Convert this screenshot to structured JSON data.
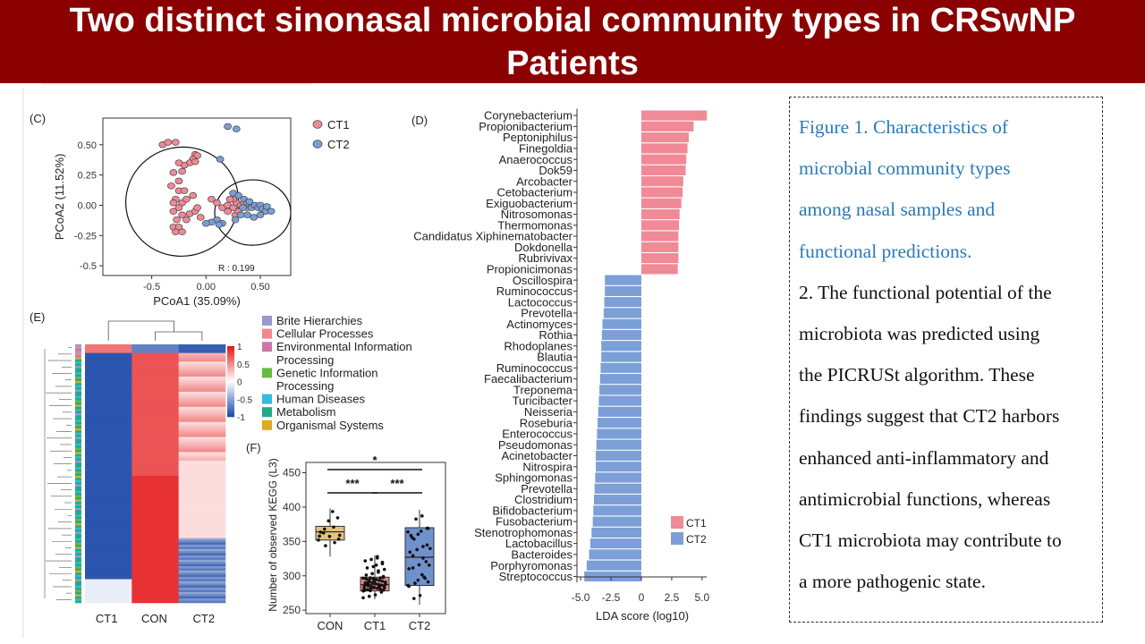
{
  "title": {
    "line1": "Two distinct sinonasal microbial community types in CRSwNP",
    "line2": "Patients"
  },
  "caption": {
    "lines": [
      {
        "text": "Figure 1. Characteristics of",
        "color": "#2a7ab9"
      },
      {
        "text": "microbial community types",
        "color": "#2a7ab9"
      },
      {
        "text": "among nasal samples and",
        "color": "#2a7ab9"
      },
      {
        "text": "functional predictions.",
        "color": "#2a7ab9"
      },
      {
        "text": "2. The functional potential of the",
        "color": "#111111"
      },
      {
        "text": "microbiota was predicted using",
        "color": "#111111"
      },
      {
        "text": "the PICRUSt algorithm. These",
        "color": "#111111"
      },
      {
        "text": "findings suggest that CT2 harbors",
        "color": "#111111"
      },
      {
        "text": "enhanced anti-inflammatory and",
        "color": "#111111"
      },
      {
        "text": "antimicrobial functions, whereas",
        "color": "#111111"
      },
      {
        "text": "CT1 microbiota may contribute to",
        "color": "#111111"
      },
      {
        "text": "a more pathogenic state.",
        "color": "#111111"
      }
    ]
  },
  "colors": {
    "ct1": "#f08a96",
    "ct2": "#7b9fd6",
    "con": "#e2c27e",
    "ct1_box": "#e8838f",
    "ct2_box": "#6f91cc"
  },
  "chart_data": [
    {
      "panel": "(C)",
      "type": "scatter",
      "xlabel": "PCoA1 (35.09%)",
      "ylabel": "PCoA2 (11.52%)",
      "xticks": [
        "-0.5",
        "0.00",
        "0.50"
      ],
      "yticks": [
        "0.50",
        "0.25",
        "0.00",
        "-0.25",
        "-0.5"
      ],
      "xlim": [
        -0.95,
        0.78
      ],
      "ylim": [
        -0.58,
        0.72
      ],
      "annotation": "R : 0.199",
      "legend": "right",
      "series": [
        {
          "name": "CT1",
          "points": [
            [
              -0.1,
              0.42
            ],
            [
              -0.08,
              0.41
            ],
            [
              -0.12,
              0.38
            ],
            [
              -0.15,
              0.35
            ],
            [
              -0.1,
              0.36
            ],
            [
              -0.2,
              0.33
            ],
            [
              -0.4,
              0.5
            ],
            [
              -0.35,
              0.52
            ],
            [
              -0.28,
              0.52
            ],
            [
              -0.25,
              0.35
            ],
            [
              -0.3,
              0.27
            ],
            [
              -0.22,
              0.28
            ],
            [
              -0.25,
              0.2
            ],
            [
              -0.32,
              0.16
            ],
            [
              -0.25,
              0.12
            ],
            [
              -0.28,
              0.05
            ],
            [
              -0.22,
              0.02
            ],
            [
              -0.3,
              0.02
            ],
            [
              -0.25,
              -0.02
            ],
            [
              -0.3,
              -0.05
            ],
            [
              -0.22,
              -0.08
            ],
            [
              -0.27,
              -0.12
            ],
            [
              -0.3,
              -0.18
            ],
            [
              -0.25,
              -0.18
            ],
            [
              -0.28,
              -0.22
            ],
            [
              -0.22,
              -0.22
            ],
            [
              -0.18,
              -0.12
            ],
            [
              -0.15,
              -0.07
            ],
            [
              -0.1,
              -0.05
            ],
            [
              -0.05,
              -0.1
            ],
            [
              -0.08,
              -0.02
            ],
            [
              -0.18,
              0.05
            ],
            [
              -0.12,
              0.08
            ],
            [
              -0.2,
              0.12
            ],
            [
              0.05,
              0.05
            ],
            [
              0.1,
              0.02
            ],
            [
              0.15,
              -0.02
            ],
            [
              0.2,
              0.0
            ],
            [
              0.25,
              -0.02
            ],
            [
              0.28,
              0.02
            ],
            [
              0.32,
              0.0
            ],
            [
              0.35,
              0.02
            ],
            [
              0.38,
              -0.02
            ],
            [
              0.2,
              -0.05
            ],
            [
              0.27,
              -0.08
            ],
            [
              0.3,
              -0.05
            ],
            [
              0.25,
              0.05
            ],
            [
              0.4,
              0.0
            ],
            [
              0.22,
              0.05
            ]
          ]
        },
        {
          "name": "CT2",
          "points": [
            [
              0.2,
              0.65
            ],
            [
              0.28,
              0.63
            ],
            [
              0.13,
              0.38
            ],
            [
              0.25,
              0.1
            ],
            [
              0.3,
              0.08
            ],
            [
              0.35,
              0.05
            ],
            [
              0.38,
              0.02
            ],
            [
              0.42,
              -0.02
            ],
            [
              0.45,
              0.0
            ],
            [
              0.48,
              -0.02
            ],
            [
              0.5,
              0.0
            ],
            [
              0.52,
              -0.03
            ],
            [
              0.55,
              -0.05
            ],
            [
              0.5,
              -0.08
            ],
            [
              0.44,
              -0.1
            ],
            [
              0.38,
              -0.08
            ],
            [
              0.32,
              -0.08
            ],
            [
              0.27,
              -0.12
            ],
            [
              0.15,
              -0.15
            ],
            [
              0.1,
              -0.12
            ],
            [
              0.05,
              -0.14
            ],
            [
              0.0,
              -0.15
            ],
            [
              0.12,
              -0.16
            ],
            [
              0.34,
              -0.02
            ],
            [
              0.6,
              -0.05
            ],
            [
              0.56,
              -0.01
            ],
            [
              0.4,
              0.03
            ]
          ]
        }
      ],
      "ellipses": [
        {
          "name": "CT1",
          "cx": -0.22,
          "cy": 0.03,
          "rx": 0.52,
          "ry": 0.45
        },
        {
          "name": "CT2",
          "cx": 0.43,
          "cy": -0.06,
          "rx": 0.35,
          "ry": 0.27
        }
      ]
    },
    {
      "panel": "(D)",
      "type": "bar",
      "orientation": "horizontal",
      "xlabel": "LDA score (log10)",
      "xticks": [
        "-5.0",
        "-2.5",
        "0",
        "2.5",
        "5.0"
      ],
      "xlim": [
        -5.3,
        5.6
      ],
      "legend": "bottom-right",
      "series": [
        {
          "name": "CT1",
          "categories": [
            "Corynebacterium",
            "Propionibacterium",
            "Peptoniphilus",
            "Finegoldia",
            "Anaerococcus",
            "Dok59",
            "Arcobacter",
            "Cetobacterium",
            "Exiguobacterium",
            "Nitrosomonas",
            "Thermomonas",
            "Candidatus Xiphinematobacter",
            "Dokdonella",
            "Rubrivivax",
            "Propionicimonas"
          ],
          "values": [
            5.4,
            4.3,
            3.9,
            3.8,
            3.7,
            3.65,
            3.45,
            3.4,
            3.3,
            3.15,
            3.1,
            3.05,
            3.05,
            3.05,
            3.0
          ]
        },
        {
          "name": "CT2",
          "categories": [
            "Oscillospira",
            "Ruminococcus",
            "Lactococcus",
            "Prevotella",
            "Actinomyces",
            "Rothia",
            "Rhodoplanes",
            "Blautia",
            "Ruminococcus",
            "Faecalibacterium",
            "Treponema",
            "Turicibacter",
            "Neisseria",
            "Roseburia",
            "Enterococcus",
            "Pseudomonas",
            "Acinetobacter",
            "Nitrospira",
            "Sphingomonas",
            "Prevotella",
            "Clostridium",
            "Bifidobacterium",
            "Fusobacterium",
            "Stenotrophomonas",
            "Lactobacillus",
            "Bacteroides",
            "Porphyromonas",
            "Streptococcus"
          ],
          "values": [
            -3.0,
            -3.0,
            -3.05,
            -3.1,
            -3.2,
            -3.25,
            -3.3,
            -3.3,
            -3.35,
            -3.4,
            -3.45,
            -3.5,
            -3.55,
            -3.6,
            -3.65,
            -3.7,
            -3.75,
            -3.75,
            -3.8,
            -3.85,
            -3.9,
            -3.95,
            -4.0,
            -4.1,
            -4.2,
            -4.3,
            -4.5,
            -4.7
          ]
        }
      ]
    },
    {
      "panel": "(E)",
      "type": "heatmap",
      "columns": [
        "CT1",
        "CON",
        "CT2"
      ],
      "colorbar_ticks": [
        "1",
        "0.5",
        "0",
        "-0.5",
        "-1"
      ],
      "legend_items": [
        {
          "label": "Brite Hierarchies",
          "color": "#9999cc"
        },
        {
          "label": "Cellular Processes",
          "color": "#f0878e"
        },
        {
          "label": "Environmental Information Processing",
          "color": "#cc77aa"
        },
        {
          "label": "Genetic Information Processing",
          "color": "#66bb44"
        },
        {
          "label": "Human Diseases",
          "color": "#33bbdd"
        },
        {
          "label": "Metabolism",
          "color": "#22aa88"
        },
        {
          "label": "Organismal Systems",
          "color": "#ddaa22"
        }
      ],
      "legend_lines": [
        "Brite Hierarchies",
        "Cellular Processes",
        "Environmental Information",
        "Processing",
        "Genetic Information",
        "Processing",
        "Human Diseases",
        "Metabolism",
        "Organismal Systems"
      ]
    },
    {
      "panel": "(F)",
      "type": "box",
      "ylabel": "Number of observed KEGG (L3)",
      "categories": [
        "CON",
        "CT1",
        "CT2"
      ],
      "yticks": [
        "450",
        "400",
        "350",
        "300",
        "250"
      ],
      "ylim": [
        245,
        465
      ],
      "boxes": [
        {
          "name": "CON",
          "q1": 352,
          "median": 364,
          "q3": 372,
          "whisker_low": 328,
          "whisker_high": 398
        },
        {
          "name": "CT1",
          "q1": 278,
          "median": 287,
          "q3": 298,
          "whisker_low": 266,
          "whisker_high": 330
        },
        {
          "name": "CT2",
          "q1": 286,
          "median": 327,
          "q3": 370,
          "whisker_low": 258,
          "whisker_high": 396
        }
      ],
      "significance": [
        {
          "pair": [
            "CON",
            "CT2"
          ],
          "label": "*"
        },
        {
          "pair": [
            "CON",
            "CT1"
          ],
          "label": "***"
        },
        {
          "pair": [
            "CT1",
            "CT2"
          ],
          "label": "***"
        }
      ]
    }
  ]
}
